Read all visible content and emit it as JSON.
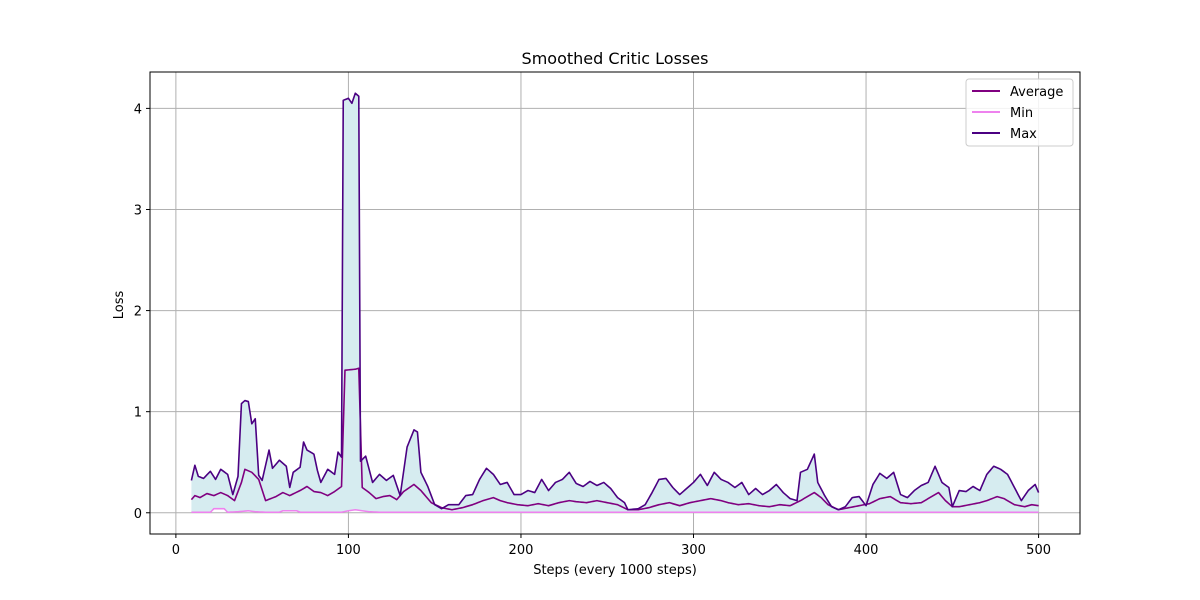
{
  "chart_data": {
    "type": "line",
    "title": "Smoothed Critic Losses",
    "xlabel": "Steps (every 1000 steps)",
    "ylabel": "Loss",
    "xlim": [
      -15,
      524
    ],
    "ylim": [
      -0.21,
      4.36
    ],
    "xticks": [
      0,
      100,
      200,
      300,
      400,
      500
    ],
    "yticks": [
      0,
      1,
      2,
      3,
      4
    ],
    "grid": true,
    "legend_position": "top-right",
    "fill_between": {
      "lower": "Min",
      "upper": "Max",
      "color": "#d6ecf0"
    },
    "x_range": [
      9,
      500
    ],
    "series": [
      {
        "name": "Average",
        "color": "#800080",
        "points": [
          [
            9,
            0.13
          ],
          [
            11,
            0.17
          ],
          [
            14,
            0.15
          ],
          [
            18,
            0.19
          ],
          [
            22,
            0.17
          ],
          [
            26,
            0.2
          ],
          [
            30,
            0.17
          ],
          [
            34,
            0.12
          ],
          [
            38,
            0.3
          ],
          [
            40,
            0.43
          ],
          [
            44,
            0.4
          ],
          [
            48,
            0.33
          ],
          [
            52,
            0.12
          ],
          [
            58,
            0.16
          ],
          [
            62,
            0.2
          ],
          [
            66,
            0.17
          ],
          [
            72,
            0.22
          ],
          [
            76,
            0.26
          ],
          [
            80,
            0.21
          ],
          [
            84,
            0.2
          ],
          [
            88,
            0.17
          ],
          [
            92,
            0.21
          ],
          [
            96,
            0.26
          ],
          [
            98,
            1.41
          ],
          [
            104,
            1.42
          ],
          [
            106,
            1.43
          ],
          [
            108,
            0.25
          ],
          [
            112,
            0.2
          ],
          [
            116,
            0.14
          ],
          [
            120,
            0.16
          ],
          [
            124,
            0.17
          ],
          [
            128,
            0.13
          ],
          [
            132,
            0.21
          ],
          [
            138,
            0.28
          ],
          [
            142,
            0.22
          ],
          [
            148,
            0.1
          ],
          [
            154,
            0.05
          ],
          [
            160,
            0.03
          ],
          [
            166,
            0.05
          ],
          [
            172,
            0.08
          ],
          [
            178,
            0.12
          ],
          [
            184,
            0.15
          ],
          [
            188,
            0.12
          ],
          [
            192,
            0.1
          ],
          [
            198,
            0.08
          ],
          [
            204,
            0.07
          ],
          [
            210,
            0.09
          ],
          [
            216,
            0.07
          ],
          [
            222,
            0.1
          ],
          [
            228,
            0.12
          ],
          [
            232,
            0.11
          ],
          [
            238,
            0.1
          ],
          [
            244,
            0.12
          ],
          [
            250,
            0.1
          ],
          [
            256,
            0.08
          ],
          [
            262,
            0.03
          ],
          [
            268,
            0.03
          ],
          [
            274,
            0.05
          ],
          [
            280,
            0.08
          ],
          [
            286,
            0.1
          ],
          [
            292,
            0.07
          ],
          [
            298,
            0.1
          ],
          [
            304,
            0.12
          ],
          [
            310,
            0.14
          ],
          [
            316,
            0.12
          ],
          [
            320,
            0.1
          ],
          [
            326,
            0.08
          ],
          [
            332,
            0.09
          ],
          [
            338,
            0.07
          ],
          [
            344,
            0.06
          ],
          [
            350,
            0.08
          ],
          [
            356,
            0.07
          ],
          [
            362,
            0.12
          ],
          [
            366,
            0.16
          ],
          [
            370,
            0.2
          ],
          [
            374,
            0.15
          ],
          [
            378,
            0.08
          ],
          [
            384,
            0.03
          ],
          [
            390,
            0.05
          ],
          [
            396,
            0.07
          ],
          [
            402,
            0.09
          ],
          [
            408,
            0.14
          ],
          [
            414,
            0.16
          ],
          [
            420,
            0.1
          ],
          [
            426,
            0.09
          ],
          [
            432,
            0.1
          ],
          [
            438,
            0.16
          ],
          [
            442,
            0.2
          ],
          [
            446,
            0.12
          ],
          [
            450,
            0.06
          ],
          [
            454,
            0.06
          ],
          [
            460,
            0.08
          ],
          [
            466,
            0.1
          ],
          [
            470,
            0.12
          ],
          [
            476,
            0.16
          ],
          [
            480,
            0.14
          ],
          [
            486,
            0.08
          ],
          [
            492,
            0.06
          ],
          [
            496,
            0.08
          ],
          [
            500,
            0.07
          ]
        ]
      },
      {
        "name": "Min",
        "color": "#ee82ee",
        "points": [
          [
            9,
            0.005
          ],
          [
            20,
            0.005
          ],
          [
            22,
            0.04
          ],
          [
            28,
            0.04
          ],
          [
            30,
            0.005
          ],
          [
            36,
            0.01
          ],
          [
            42,
            0.02
          ],
          [
            46,
            0.01
          ],
          [
            52,
            0.005
          ],
          [
            60,
            0.005
          ],
          [
            62,
            0.02
          ],
          [
            70,
            0.02
          ],
          [
            72,
            0.005
          ],
          [
            96,
            0.005
          ],
          [
            100,
            0.02
          ],
          [
            104,
            0.03
          ],
          [
            108,
            0.02
          ],
          [
            112,
            0.01
          ],
          [
            118,
            0.005
          ],
          [
            500,
            0.005
          ]
        ]
      },
      {
        "name": "Max",
        "color": "#4b0082",
        "points": [
          [
            9,
            0.32
          ],
          [
            11,
            0.47
          ],
          [
            13,
            0.36
          ],
          [
            16,
            0.34
          ],
          [
            20,
            0.41
          ],
          [
            23,
            0.33
          ],
          [
            26,
            0.43
          ],
          [
            30,
            0.38
          ],
          [
            33,
            0.18
          ],
          [
            36,
            0.36
          ],
          [
            38,
            1.08
          ],
          [
            40,
            1.11
          ],
          [
            42,
            1.1
          ],
          [
            44,
            0.88
          ],
          [
            46,
            0.93
          ],
          [
            48,
            0.37
          ],
          [
            50,
            0.32
          ],
          [
            54,
            0.62
          ],
          [
            56,
            0.44
          ],
          [
            60,
            0.52
          ],
          [
            64,
            0.46
          ],
          [
            66,
            0.25
          ],
          [
            68,
            0.4
          ],
          [
            72,
            0.45
          ],
          [
            74,
            0.7
          ],
          [
            76,
            0.62
          ],
          [
            80,
            0.58
          ],
          [
            82,
            0.42
          ],
          [
            84,
            0.3
          ],
          [
            88,
            0.43
          ],
          [
            92,
            0.38
          ],
          [
            94,
            0.6
          ],
          [
            96,
            0.55
          ],
          [
            97,
            4.08
          ],
          [
            100,
            4.1
          ],
          [
            102,
            4.05
          ],
          [
            104,
            4.15
          ],
          [
            106,
            4.12
          ],
          [
            107,
            0.51
          ],
          [
            110,
            0.56
          ],
          [
            114,
            0.3
          ],
          [
            118,
            0.38
          ],
          [
            122,
            0.32
          ],
          [
            126,
            0.37
          ],
          [
            130,
            0.17
          ],
          [
            134,
            0.65
          ],
          [
            138,
            0.82
          ],
          [
            140,
            0.8
          ],
          [
            142,
            0.4
          ],
          [
            146,
            0.26
          ],
          [
            150,
            0.08
          ],
          [
            154,
            0.04
          ],
          [
            158,
            0.08
          ],
          [
            164,
            0.08
          ],
          [
            168,
            0.17
          ],
          [
            172,
            0.18
          ],
          [
            176,
            0.33
          ],
          [
            180,
            0.44
          ],
          [
            184,
            0.38
          ],
          [
            188,
            0.28
          ],
          [
            192,
            0.3
          ],
          [
            196,
            0.18
          ],
          [
            200,
            0.18
          ],
          [
            204,
            0.22
          ],
          [
            208,
            0.2
          ],
          [
            212,
            0.33
          ],
          [
            216,
            0.22
          ],
          [
            220,
            0.3
          ],
          [
            224,
            0.33
          ],
          [
            228,
            0.4
          ],
          [
            232,
            0.29
          ],
          [
            236,
            0.26
          ],
          [
            240,
            0.31
          ],
          [
            244,
            0.27
          ],
          [
            248,
            0.3
          ],
          [
            252,
            0.24
          ],
          [
            256,
            0.15
          ],
          [
            260,
            0.1
          ],
          [
            262,
            0.03
          ],
          [
            268,
            0.04
          ],
          [
            272,
            0.08
          ],
          [
            276,
            0.2
          ],
          [
            280,
            0.33
          ],
          [
            284,
            0.34
          ],
          [
            288,
            0.25
          ],
          [
            292,
            0.18
          ],
          [
            296,
            0.24
          ],
          [
            300,
            0.3
          ],
          [
            304,
            0.38
          ],
          [
            308,
            0.27
          ],
          [
            312,
            0.4
          ],
          [
            316,
            0.33
          ],
          [
            320,
            0.3
          ],
          [
            324,
            0.25
          ],
          [
            328,
            0.3
          ],
          [
            332,
            0.18
          ],
          [
            336,
            0.24
          ],
          [
            340,
            0.18
          ],
          [
            344,
            0.22
          ],
          [
            348,
            0.28
          ],
          [
            352,
            0.2
          ],
          [
            356,
            0.14
          ],
          [
            360,
            0.12
          ],
          [
            362,
            0.4
          ],
          [
            366,
            0.43
          ],
          [
            370,
            0.58
          ],
          [
            372,
            0.3
          ],
          [
            376,
            0.17
          ],
          [
            380,
            0.06
          ],
          [
            384,
            0.03
          ],
          [
            388,
            0.06
          ],
          [
            392,
            0.15
          ],
          [
            396,
            0.16
          ],
          [
            400,
            0.07
          ],
          [
            404,
            0.28
          ],
          [
            408,
            0.39
          ],
          [
            412,
            0.34
          ],
          [
            416,
            0.4
          ],
          [
            420,
            0.18
          ],
          [
            424,
            0.15
          ],
          [
            428,
            0.22
          ],
          [
            432,
            0.27
          ],
          [
            436,
            0.3
          ],
          [
            440,
            0.46
          ],
          [
            444,
            0.3
          ],
          [
            448,
            0.25
          ],
          [
            450,
            0.06
          ],
          [
            454,
            0.22
          ],
          [
            458,
            0.21
          ],
          [
            462,
            0.26
          ],
          [
            466,
            0.22
          ],
          [
            470,
            0.38
          ],
          [
            474,
            0.46
          ],
          [
            478,
            0.43
          ],
          [
            482,
            0.38
          ],
          [
            486,
            0.25
          ],
          [
            490,
            0.12
          ],
          [
            494,
            0.22
          ],
          [
            498,
            0.28
          ],
          [
            500,
            0.2
          ]
        ]
      }
    ]
  }
}
